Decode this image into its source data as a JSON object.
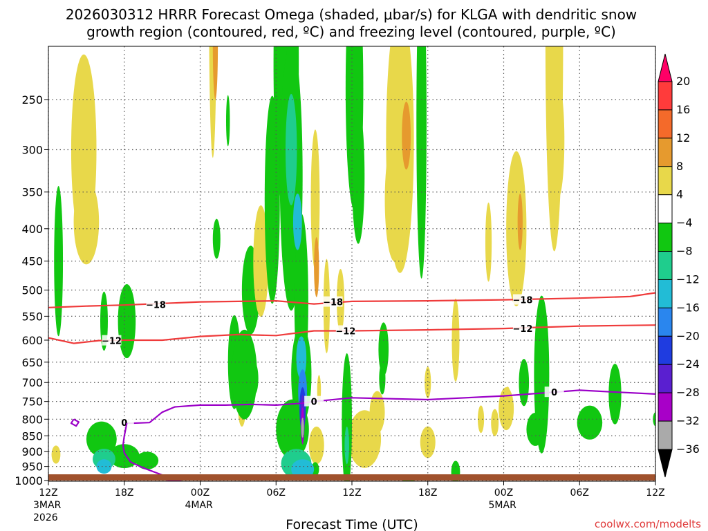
{
  "chart_data": {
    "type": "heatmap",
    "title_line1": "2026030312 HRRR Forecast Omega (shaded, μbar/s) for KLGA with dendritic snow",
    "title_line2": "growth region (contoured, red, ºC) and freezing level (contoured, purple, ºC)",
    "xlabel": "Forecast Time (UTC)",
    "ylabel": "",
    "credit": "coolwx.com/modelts",
    "x_hours": [
      0,
      6,
      12,
      18,
      24,
      30,
      36,
      42,
      48
    ],
    "x_ticks": [
      {
        "h": 0,
        "label": "12Z",
        "sub1": "3MAR",
        "sub2": "2026"
      },
      {
        "h": 6,
        "label": "18Z",
        "sub1": "",
        "sub2": ""
      },
      {
        "h": 12,
        "label": "00Z",
        "sub1": "4MAR",
        "sub2": ""
      },
      {
        "h": 18,
        "label": "06Z",
        "sub1": "",
        "sub2": ""
      },
      {
        "h": 24,
        "label": "12Z",
        "sub1": "",
        "sub2": ""
      },
      {
        "h": 30,
        "label": "18Z",
        "sub1": "",
        "sub2": ""
      },
      {
        "h": 36,
        "label": "00Z",
        "sub1": "5MAR",
        "sub2": ""
      },
      {
        "h": 42,
        "label": "06Z",
        "sub1": "",
        "sub2": ""
      },
      {
        "h": 48,
        "label": "12Z",
        "sub1": "",
        "sub2": ""
      }
    ],
    "y_levels_hpa": [
      250,
      300,
      350,
      400,
      450,
      500,
      550,
      600,
      650,
      700,
      750,
      800,
      850,
      900,
      950,
      1000
    ],
    "y_tick_labels": [
      "250",
      "300",
      "350",
      "400",
      "450",
      "500",
      "550",
      "600",
      "650",
      "700",
      "750",
      "800",
      "850",
      "900",
      "950",
      "1000"
    ],
    "colorbar": {
      "labels": [
        "20",
        "16",
        "12",
        "8",
        "4",
        "−4",
        "−8",
        "−12",
        "−16",
        "−20",
        "−24",
        "−28",
        "−32",
        "−36"
      ],
      "colors": [
        "#ff0066",
        "#ff3b3b",
        "#f46a2a",
        "#e69a2e",
        "#e8d84a",
        "#ffffff",
        "#11c711",
        "#1fcd8d",
        "#22bcd6",
        "#2a86ee",
        "#1f3ce0",
        "#5a1fd0",
        "#a800c8",
        "#aaaaaa",
        "#000000"
      ]
    },
    "omega_blobs": [
      {
        "h": 0.8,
        "p": 450,
        "hw": 0.35,
        "hp": 120,
        "v": -5
      },
      {
        "h": 0.6,
        "p": 910,
        "hw": 0.35,
        "hp": 30,
        "v": 5
      },
      {
        "h": 2.8,
        "p": 300,
        "hw": 1.0,
        "hp": 100,
        "v": 5
      },
      {
        "h": 3.0,
        "p": 390,
        "hw": 1.0,
        "hp": 60,
        "v": 5
      },
      {
        "h": 4.4,
        "p": 560,
        "hw": 0.3,
        "hp": 60,
        "v": -5
      },
      {
        "h": 4.2,
        "p": 860,
        "hw": 1.2,
        "hp": 55,
        "v": -6
      },
      {
        "h": 4.4,
        "p": 925,
        "hw": 0.9,
        "hp": 35,
        "v": -10
      },
      {
        "h": 4.4,
        "p": 950,
        "hw": 0.6,
        "hp": 25,
        "v": -12
      },
      {
        "h": 6.2,
        "p": 560,
        "hw": 0.7,
        "hp": 75,
        "v": -6
      },
      {
        "h": 6.0,
        "p": 915,
        "hw": 1.2,
        "hp": 40,
        "v": -5
      },
      {
        "h": 7.8,
        "p": 930,
        "hw": 0.9,
        "hp": 30,
        "v": -5
      },
      {
        "h": 13.0,
        "p": 175,
        "hw": 0.3,
        "hp": 90,
        "v": 5
      },
      {
        "h": 13.2,
        "p": 205,
        "hw": 0.2,
        "hp": 40,
        "v": 9
      },
      {
        "h": 14.2,
        "p": 270,
        "hw": 0.15,
        "hp": 25,
        "v": -5
      },
      {
        "h": 13.3,
        "p": 415,
        "hw": 0.3,
        "hp": 30,
        "v": -5
      },
      {
        "h": 14.7,
        "p": 650,
        "hw": 0.5,
        "hp": 110,
        "v": -6
      },
      {
        "h": 15.5,
        "p": 680,
        "hw": 1.0,
        "hp": 110,
        "v": -6
      },
      {
        "h": 16.0,
        "p": 500,
        "hw": 0.7,
        "hp": 80,
        "v": -5
      },
      {
        "h": 15.3,
        "p": 770,
        "hw": 0.3,
        "hp": 50,
        "v": 5
      },
      {
        "h": 16.8,
        "p": 450,
        "hw": 0.6,
        "hp": 90,
        "v": 5
      },
      {
        "h": 16.3,
        "p": 690,
        "hw": 0.3,
        "hp": 40,
        "v": -5
      },
      {
        "h": 17.7,
        "p": 360,
        "hw": 0.6,
        "hp": 130,
        "v": -5
      },
      {
        "h": 18.8,
        "p": 220,
        "hw": 1.0,
        "hp": 110,
        "v": -6
      },
      {
        "h": 19.2,
        "p": 330,
        "hw": 0.9,
        "hp": 150,
        "v": -6
      },
      {
        "h": 19.2,
        "p": 300,
        "hw": 0.45,
        "hp": 60,
        "v": -10
      },
      {
        "h": 19.7,
        "p": 390,
        "hw": 0.35,
        "hp": 40,
        "v": -12
      },
      {
        "h": 20.0,
        "p": 520,
        "hw": 0.55,
        "hp": 160,
        "v": -6
      },
      {
        "h": 20.0,
        "p": 680,
        "hw": 0.8,
        "hp": 120,
        "v": -6
      },
      {
        "h": 19.3,
        "p": 830,
        "hw": 1.3,
        "hp": 90,
        "v": -6
      },
      {
        "h": 19.6,
        "p": 940,
        "hw": 1.2,
        "hp": 50,
        "v": -8
      },
      {
        "h": 20.1,
        "p": 960,
        "hw": 0.9,
        "hp": 35,
        "v": -12
      },
      {
        "h": 20.0,
        "p": 640,
        "hw": 0.4,
        "hp": 50,
        "v": -12
      },
      {
        "h": 20.1,
        "p": 725,
        "hw": 0.35,
        "hp": 60,
        "v": -16
      },
      {
        "h": 20.1,
        "p": 770,
        "hw": 0.25,
        "hp": 60,
        "v": -20
      },
      {
        "h": 20.1,
        "p": 800,
        "hw": 0.16,
        "hp": 70,
        "v": -24
      },
      {
        "h": 20.1,
        "p": 820,
        "hw": 0.1,
        "hp": 55,
        "v": -30
      },
      {
        "h": 20.1,
        "p": 825,
        "hw": 0.05,
        "hp": 30,
        "v": -34
      },
      {
        "h": 21.1,
        "p": 360,
        "hw": 0.35,
        "hp": 90,
        "v": 5
      },
      {
        "h": 21.2,
        "p": 460,
        "hw": 0.2,
        "hp": 50,
        "v": 9
      },
      {
        "h": 21.2,
        "p": 880,
        "hw": 0.6,
        "hp": 60,
        "v": 5
      },
      {
        "h": 21.1,
        "p": 960,
        "hw": 0.3,
        "hp": 25,
        "v": -5
      },
      {
        "h": 21.4,
        "p": 720,
        "hw": 0.15,
        "hp": 40,
        "v": 5
      },
      {
        "h": 22.0,
        "p": 530,
        "hw": 0.25,
        "hp": 90,
        "v": 5
      },
      {
        "h": 23.1,
        "p": 520,
        "hw": 0.3,
        "hp": 60,
        "v": 5
      },
      {
        "h": 23.6,
        "p": 810,
        "hw": 0.4,
        "hp": 200,
        "v": -6
      },
      {
        "h": 23.6,
        "p": 880,
        "hw": 0.18,
        "hp": 60,
        "v": -8
      },
      {
        "h": 24.2,
        "p": 240,
        "hw": 0.7,
        "hp": 100,
        "v": -6
      },
      {
        "h": 24.5,
        "p": 330,
        "hw": 0.5,
        "hp": 80,
        "v": -6
      },
      {
        "h": 25.0,
        "p": 860,
        "hw": 1.3,
        "hp": 90,
        "v": 5
      },
      {
        "h": 26.0,
        "p": 780,
        "hw": 0.6,
        "hp": 60,
        "v": 5
      },
      {
        "h": 26.5,
        "p": 620,
        "hw": 0.4,
        "hp": 60,
        "v": -5
      },
      {
        "h": 26.4,
        "p": 690,
        "hw": 0.25,
        "hp": 40,
        "v": -5
      },
      {
        "h": 27.8,
        "p": 290,
        "hw": 1.1,
        "hp": 130,
        "v": 5
      },
      {
        "h": 27.4,
        "p": 360,
        "hw": 0.8,
        "hp": 80,
        "v": 5
      },
      {
        "h": 28.3,
        "p": 285,
        "hw": 0.35,
        "hp": 35,
        "v": 9
      },
      {
        "h": 29.5,
        "p": 270,
        "hw": 0.4,
        "hp": 140,
        "v": -6
      },
      {
        "h": 28.5,
        "p": 1010,
        "hw": 0.6,
        "hp": 15,
        "v": -5
      },
      {
        "h": 30.0,
        "p": 870,
        "hw": 0.6,
        "hp": 50,
        "v": 5
      },
      {
        "h": 30.0,
        "p": 700,
        "hw": 0.25,
        "hp": 40,
        "v": 5
      },
      {
        "h": 32.2,
        "p": 600,
        "hw": 0.3,
        "hp": 90,
        "v": 5
      },
      {
        "h": 32.2,
        "p": 970,
        "hw": 0.35,
        "hp": 40,
        "v": -5
      },
      {
        "h": 34.8,
        "p": 420,
        "hw": 0.25,
        "hp": 60,
        "v": 5
      },
      {
        "h": 34.2,
        "p": 800,
        "hw": 0.25,
        "hp": 40,
        "v": 5
      },
      {
        "h": 35.3,
        "p": 810,
        "hw": 0.3,
        "hp": 40,
        "v": 5
      },
      {
        "h": 37.0,
        "p": 400,
        "hw": 0.8,
        "hp": 110,
        "v": 5
      },
      {
        "h": 37.3,
        "p": 390,
        "hw": 0.2,
        "hp": 40,
        "v": 9
      },
      {
        "h": 36.2,
        "p": 770,
        "hw": 0.6,
        "hp": 60,
        "v": 5
      },
      {
        "h": 36.3,
        "p": 740,
        "hw": 0.25,
        "hp": 30,
        "v": 5
      },
      {
        "h": 37.6,
        "p": 700,
        "hw": 0.4,
        "hp": 60,
        "v": -5
      },
      {
        "h": 39.0,
        "p": 680,
        "hw": 0.6,
        "hp": 190,
        "v": -6
      },
      {
        "h": 38.5,
        "p": 830,
        "hw": 0.7,
        "hp": 50,
        "v": -6
      },
      {
        "h": 39.0,
        "p": 770,
        "hw": 0.25,
        "hp": 30,
        "v": -5
      },
      {
        "h": 40.0,
        "p": 200,
        "hw": 0.7,
        "hp": 130,
        "v": 5
      },
      {
        "h": 40.3,
        "p": 290,
        "hw": 0.5,
        "hp": 60,
        "v": 5
      },
      {
        "h": 42.8,
        "p": 810,
        "hw": 1.0,
        "hp": 50,
        "v": -6
      },
      {
        "h": 44.8,
        "p": 730,
        "hw": 0.5,
        "hp": 80,
        "v": -6
      },
      {
        "h": 48.0,
        "p": 800,
        "hw": 0.2,
        "hp": 20,
        "v": -5
      }
    ],
    "contours_red": [
      {
        "label": "−18",
        "points": [
          [
            0,
            533
          ],
          [
            3,
            530
          ],
          [
            6,
            528
          ],
          [
            9,
            525
          ],
          [
            12,
            522
          ],
          [
            15,
            521
          ],
          [
            18,
            520
          ],
          [
            21,
            526
          ],
          [
            24,
            521
          ],
          [
            30,
            520
          ],
          [
            36,
            518
          ],
          [
            42,
            515
          ],
          [
            46,
            512
          ],
          [
            48,
            505
          ]
        ],
        "label_at": [
          [
            8.5,
            527
          ],
          [
            22.5,
            522
          ],
          [
            37.5,
            518
          ]
        ]
      },
      {
        "label": "−12",
        "points": [
          [
            0,
            595
          ],
          [
            2,
            607
          ],
          [
            4,
            601
          ],
          [
            6,
            600
          ],
          [
            9,
            600
          ],
          [
            12,
            592
          ],
          [
            15,
            588
          ],
          [
            18,
            590
          ],
          [
            21,
            580
          ],
          [
            24,
            580
          ],
          [
            30,
            578
          ],
          [
            36,
            575
          ],
          [
            42,
            570
          ],
          [
            48,
            568
          ]
        ],
        "label_at": [
          [
            5.0,
            601
          ],
          [
            23.5,
            580
          ],
          [
            37.5,
            575
          ]
        ]
      }
    ],
    "contours_purple": [
      {
        "label": "0",
        "points": [
          [
            6.0,
            810
          ],
          [
            6.5,
            812
          ],
          [
            8.0,
            810
          ],
          [
            9.0,
            780
          ],
          [
            10.0,
            765
          ],
          [
            12.0,
            760
          ],
          [
            14.0,
            760
          ],
          [
            16.0,
            758
          ],
          [
            18.0,
            760
          ],
          [
            20.0,
            755
          ],
          [
            21.0,
            750
          ],
          [
            24.0,
            740
          ],
          [
            30.0,
            745
          ],
          [
            36.0,
            735
          ],
          [
            40.0,
            725
          ],
          [
            42.0,
            720
          ],
          [
            45.0,
            725
          ],
          [
            48.0,
            730
          ]
        ],
        "label_at": [
          [
            6.0,
            810
          ],
          [
            21.0,
            750
          ],
          [
            40.0,
            725
          ]
        ]
      },
      {
        "label": "",
        "points": [
          [
            6.2,
            812
          ],
          [
            6.0,
            850
          ],
          [
            5.9,
            880
          ],
          [
            6.0,
            905
          ],
          [
            6.5,
            935
          ],
          [
            7.5,
            955
          ],
          [
            9.0,
            980
          ],
          [
            10.5,
            995
          ]
        ]
      },
      {
        "label": "",
        "points": [
          [
            0.2,
            1040
          ],
          [
            1.5,
            1025
          ],
          [
            3.0,
            1018
          ],
          [
            6.0,
            1012
          ],
          [
            9.0,
            1005
          ],
          [
            10.5,
            998
          ],
          [
            9.5,
            1006
          ],
          [
            7.0,
            1012
          ]
        ]
      },
      {
        "label": "",
        "points": [
          [
            2.0,
            800
          ],
          [
            2.4,
            808
          ],
          [
            2.2,
            820
          ],
          [
            1.8,
            812
          ],
          [
            2.0,
            800
          ]
        ]
      },
      {
        "label": "",
        "points": [
          [
            11.0,
            1010
          ],
          [
            11.5,
            1006
          ],
          [
            12.4,
            1008
          ],
          [
            11.7,
            1012
          ],
          [
            11.0,
            1010
          ]
        ]
      }
    ]
  }
}
